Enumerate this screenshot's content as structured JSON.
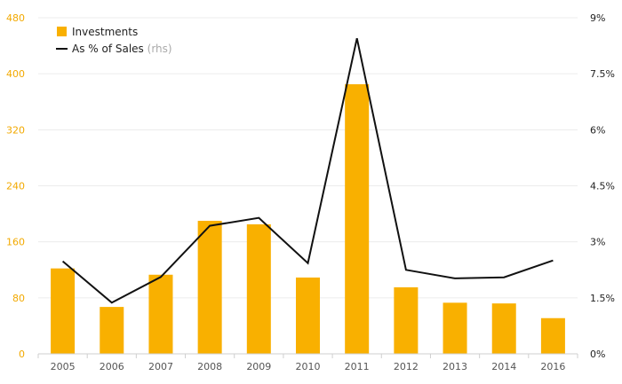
{
  "chart_data": {
    "type": "bar",
    "categories": [
      "2005",
      "2006",
      "2007",
      "2008",
      "2009",
      "2010",
      "2011",
      "2012",
      "2013",
      "2014",
      "2016"
    ],
    "series": [
      {
        "name": "Investments",
        "type": "bar",
        "axis": "left",
        "color": "#f9b000",
        "values": [
          122,
          67,
          113,
          190,
          185,
          109,
          385,
          95,
          73,
          72,
          51
        ]
      },
      {
        "name": "As % of Sales",
        "name_suffix": "(rhs)",
        "type": "line",
        "axis": "right",
        "color": "#111111",
        "values": [
          2.48,
          1.37,
          2.06,
          3.43,
          3.64,
          2.43,
          8.45,
          2.25,
          2.02,
          2.05,
          2.5
        ]
      }
    ],
    "y_left": {
      "ylim": [
        0,
        480
      ],
      "ticks": [
        0,
        80,
        160,
        240,
        320,
        400,
        480
      ],
      "tick_labels": [
        "0",
        "80",
        "160",
        "240",
        "320",
        "400",
        "480"
      ],
      "color": "#f2a900"
    },
    "y_right": {
      "ylim": [
        0,
        9
      ],
      "ticks": [
        0,
        1.5,
        3,
        4.5,
        6,
        7.5,
        9
      ],
      "tick_labels": [
        "0%",
        "1.5%",
        "3%",
        "4.5%",
        "6%",
        "7.5%",
        "9%"
      ]
    },
    "grid": true,
    "legend": "top-left"
  }
}
